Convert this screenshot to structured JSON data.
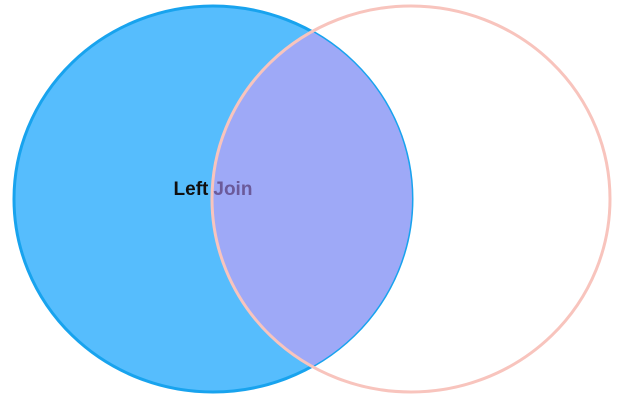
{
  "diagram": {
    "type": "venn",
    "label": {
      "word_left": "Left",
      "word_right": "Join"
    },
    "sets": [
      {
        "id": "left",
        "filled": true
      },
      {
        "id": "right",
        "filled": false
      }
    ],
    "colors": {
      "left_fill": "#56bdfd",
      "left_stroke": "#18a3ee",
      "right_stroke": "#f8c4bd",
      "intersection_fill": "#9ea9f7",
      "intersection_stroke": "#8d96ee",
      "label_left_color": "#101010",
      "label_right_color": "#6b5a9a"
    }
  }
}
